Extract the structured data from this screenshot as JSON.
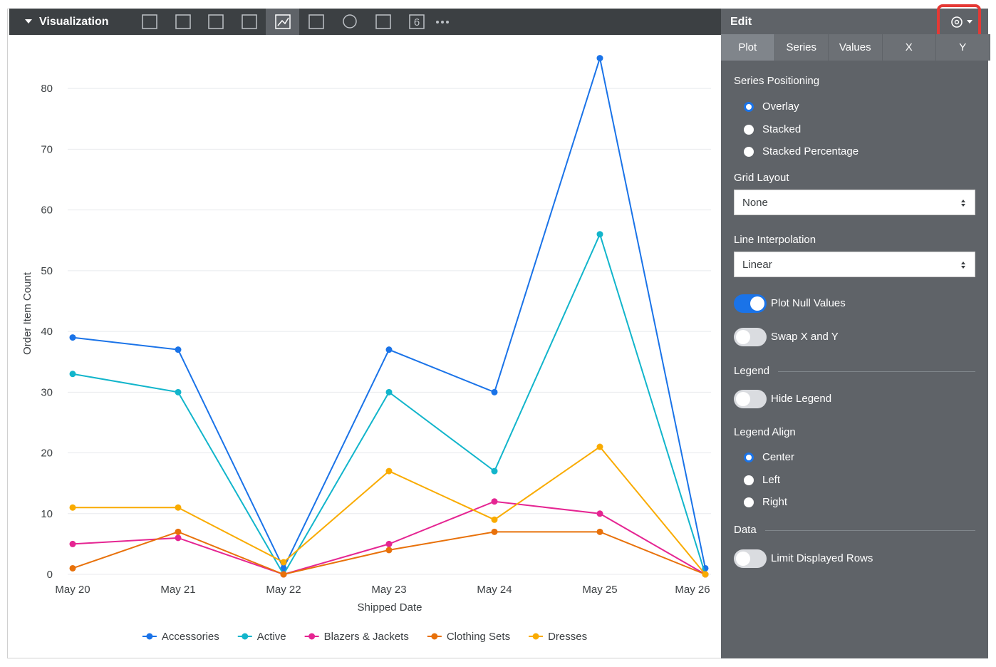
{
  "toolbar": {
    "title": "Visualization",
    "badge": "6"
  },
  "chart_data": {
    "type": "line",
    "x_label": "Shipped Date",
    "y_label": "Order Item Count",
    "categories": [
      "May 20",
      "May 21",
      "May 22",
      "May 23",
      "May 24",
      "May 25",
      "May 26"
    ],
    "series": [
      {
        "name": "Accessories",
        "color": "#1a73e8",
        "values": [
          39,
          37,
          1,
          37,
          30,
          85,
          1
        ]
      },
      {
        "name": "Active",
        "color": "#12b5cb",
        "values": [
          33,
          30,
          0,
          30,
          17,
          56,
          0
        ]
      },
      {
        "name": "Blazers & Jackets",
        "color": "#e52592",
        "values": [
          5,
          6,
          0,
          5,
          12,
          10,
          0
        ]
      },
      {
        "name": "Clothing Sets",
        "color": "#e8710a",
        "values": [
          1,
          7,
          0,
          4,
          7,
          7,
          0
        ]
      },
      {
        "name": "Dresses",
        "color": "#f9ab00",
        "values": [
          11,
          11,
          2,
          17,
          9,
          21,
          0
        ]
      }
    ],
    "ylim": [
      0,
      88
    ],
    "yticks": [
      0,
      10,
      20,
      30,
      40,
      50,
      60,
      70,
      80
    ],
    "grid": true,
    "legend": "bottom"
  },
  "panel": {
    "header": "Edit",
    "tabs": [
      {
        "label": "Plot",
        "active": true
      },
      {
        "label": "Series",
        "active": false
      },
      {
        "label": "Values",
        "active": false
      },
      {
        "label": "X",
        "active": false
      },
      {
        "label": "Y",
        "active": false
      }
    ],
    "series_positioning": {
      "label": "Series Positioning",
      "options": [
        {
          "label": "Overlay",
          "checked": true
        },
        {
          "label": "Stacked",
          "checked": false
        },
        {
          "label": "Stacked Percentage",
          "checked": false
        }
      ]
    },
    "grid_layout": {
      "label": "Grid Layout",
      "value": "None"
    },
    "line_interpolation": {
      "label": "Line Interpolation",
      "value": "Linear"
    },
    "plot_null_values": {
      "label": "Plot Null Values",
      "on": true
    },
    "swap_xy": {
      "label": "Swap X and Y",
      "on": false
    },
    "legend_heading": "Legend",
    "hide_legend": {
      "label": "Hide Legend",
      "on": false
    },
    "legend_align": {
      "label": "Legend Align",
      "options": [
        {
          "label": "Center",
          "checked": true
        },
        {
          "label": "Left",
          "checked": false
        },
        {
          "label": "Right",
          "checked": false
        }
      ]
    },
    "data_heading": "Data",
    "limit_rows": {
      "label": "Limit Displayed Rows",
      "on": false
    }
  }
}
